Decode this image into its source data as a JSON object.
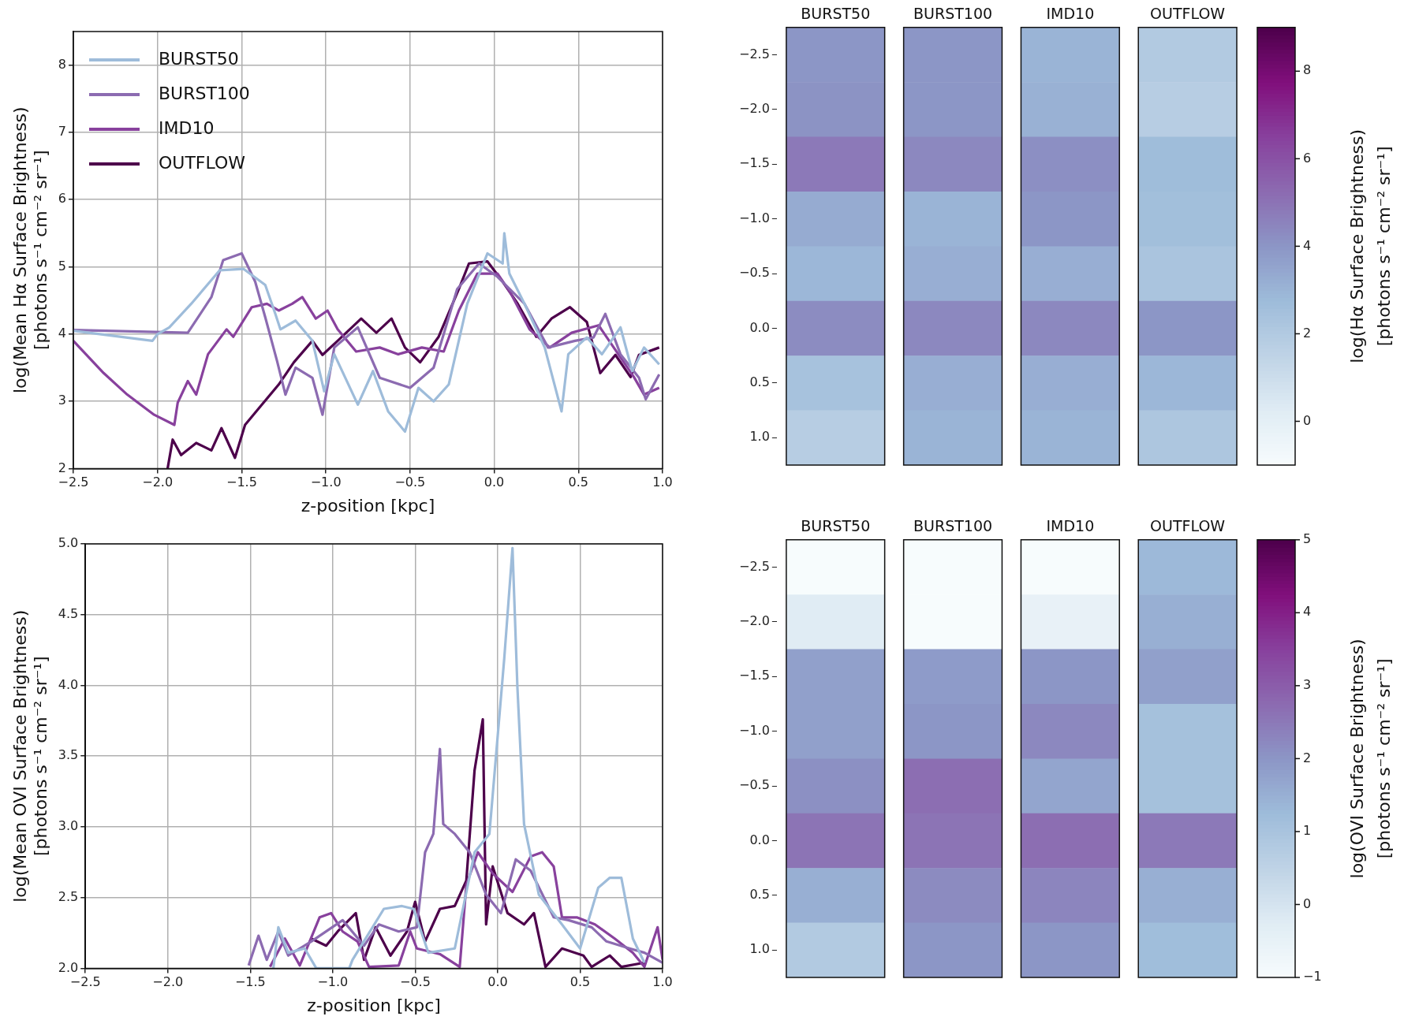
{
  "chart_data": [
    {
      "type": "line",
      "xlabel": "z-position [kpc]",
      "ylabel": "log(Mean Hα Surface Brightness)\n[photons s⁻¹ cm⁻² sr⁻¹]",
      "xlim": [
        -2.5,
        1.0
      ],
      "ylim": [
        2,
        8.5
      ],
      "xticks": [
        {
          "value": -2.5,
          "label": "−2.5"
        },
        {
          "value": -2.0,
          "label": "−2.0"
        },
        {
          "value": -1.5,
          "label": "−1.5"
        },
        {
          "value": -1.0,
          "label": "−1.0"
        },
        {
          "value": -0.5,
          "label": "−0.5"
        },
        {
          "value": 0,
          "label": "0.0"
        },
        {
          "value": 0.5,
          "label": "0.5"
        },
        {
          "value": 1.0,
          "label": "1.0"
        }
      ],
      "yticks": [
        2,
        3,
        4,
        5,
        6,
        7,
        8
      ],
      "grid": true,
      "legend": "top left",
      "series": [
        {
          "name": "BURST50",
          "color": "#9ebcda",
          "x": [
            -2.5,
            -2.03,
            -2.0,
            -1.93,
            -1.8,
            -1.63,
            -1.49,
            -1.36,
            -1.3,
            -1.27,
            -1.18,
            -1.08,
            -1.01,
            -0.95,
            -0.81,
            -0.72,
            -0.63,
            -0.53,
            -0.45,
            -0.36,
            -0.27,
            -0.16,
            -0.04,
            0.05,
            0.06,
            0.09,
            0.18,
            0.3,
            0.4,
            0.44,
            0.55,
            0.64,
            0.75,
            0.82,
            0.89,
            0.98
          ],
          "values": [
            4.05,
            3.9,
            4.0,
            4.1,
            4.45,
            4.95,
            4.97,
            4.73,
            4.3,
            4.07,
            4.2,
            3.9,
            3.15,
            3.7,
            2.95,
            3.45,
            2.85,
            2.55,
            3.2,
            3.0,
            3.25,
            4.45,
            5.2,
            5.05,
            5.5,
            4.9,
            4.45,
            3.8,
            2.85,
            3.7,
            3.95,
            3.7,
            4.1,
            3.45,
            3.8,
            3.55
          ]
        },
        {
          "name": "BURST100",
          "color": "#8c6bb1",
          "x": [
            -2.5,
            -1.82,
            -1.68,
            -1.61,
            -1.5,
            -1.42,
            -1.36,
            -1.29,
            -1.24,
            -1.18,
            -1.08,
            -1.02,
            -0.95,
            -0.81,
            -0.68,
            -0.5,
            -0.36,
            -0.22,
            -0.09,
            0.02,
            0.18,
            0.32,
            0.48,
            0.59,
            0.66,
            0.75,
            0.86,
            0.9,
            0.98
          ],
          "values": [
            4.06,
            4.02,
            4.55,
            5.1,
            5.2,
            4.78,
            4.25,
            3.6,
            3.1,
            3.5,
            3.35,
            2.8,
            3.8,
            4.1,
            3.35,
            3.2,
            3.5,
            4.67,
            5.05,
            4.85,
            4.45,
            3.8,
            3.9,
            3.95,
            4.3,
            3.7,
            3.35,
            3.03,
            3.4
          ]
        },
        {
          "name": "IMD10",
          "color": "#88419d",
          "x": [
            -2.5,
            -2.32,
            -2.18,
            -2.02,
            -1.9,
            -1.88,
            -1.82,
            -1.77,
            -1.7,
            -1.59,
            -1.55,
            -1.44,
            -1.35,
            -1.28,
            -1.2,
            -1.14,
            -1.06,
            -0.99,
            -0.93,
            -0.82,
            -0.68,
            -0.57,
            -0.43,
            -0.3,
            -0.21,
            -0.1,
            0.02,
            0.1,
            0.21,
            0.33,
            0.46,
            0.62,
            0.71,
            0.83,
            0.89,
            0.98
          ],
          "values": [
            3.9,
            3.42,
            3.1,
            2.8,
            2.65,
            2.98,
            3.3,
            3.1,
            3.7,
            4.07,
            3.96,
            4.4,
            4.45,
            4.35,
            4.45,
            4.55,
            4.23,
            4.35,
            4.07,
            3.74,
            3.8,
            3.7,
            3.8,
            3.74,
            4.35,
            4.9,
            4.9,
            4.6,
            4.07,
            3.8,
            4.02,
            4.13,
            3.8,
            3.36,
            3.1,
            3.2
          ]
        },
        {
          "name": "OUTFLOW",
          "color": "#4d004b",
          "x": [
            -1.94,
            -1.91,
            -1.86,
            -1.77,
            -1.68,
            -1.62,
            -1.54,
            -1.48,
            -1.37,
            -1.28,
            -1.19,
            -1.08,
            -1.02,
            -0.93,
            -0.79,
            -0.7,
            -0.61,
            -0.53,
            -0.44,
            -0.33,
            -0.21,
            -0.15,
            -0.04,
            0.05,
            0.14,
            0.25,
            0.34,
            0.45,
            0.55,
            0.63,
            0.72,
            0.81,
            0.86,
            0.98
          ],
          "values": [
            2.0,
            2.43,
            2.2,
            2.38,
            2.27,
            2.6,
            2.16,
            2.65,
            2.98,
            3.25,
            3.58,
            3.9,
            3.69,
            3.9,
            4.23,
            4.02,
            4.23,
            3.8,
            3.58,
            3.96,
            4.67,
            5.05,
            5.08,
            4.78,
            4.45,
            3.96,
            4.23,
            4.4,
            4.18,
            3.42,
            3.69,
            3.36,
            3.69,
            3.8
          ]
        }
      ]
    },
    {
      "type": "heatmap",
      "categories": [
        "BURST50",
        "BURST100",
        "IMD10",
        "OUTFLOW"
      ],
      "y_categories": [
        "−2.5",
        "−2.0",
        "−1.5",
        "−1.0",
        "−0.5",
        "0.0",
        "0.5",
        "1.0"
      ],
      "clim": [
        -1,
        9
      ],
      "cticks": [
        0,
        2,
        4,
        6,
        8
      ],
      "clabel": "log(Hα Surface Brightness)\n[photons s⁻¹ cm⁻² sr⁻¹]",
      "cells": [
        [
          4,
          4,
          3,
          2
        ],
        [
          4.1,
          4,
          3.1,
          1.8
        ],
        [
          4.85,
          4.4,
          4.2,
          2.7
        ],
        [
          3.3,
          3,
          4,
          2.6
        ],
        [
          2.9,
          3.2,
          3.2,
          2.3
        ],
        [
          4.3,
          4.4,
          4.4,
          4
        ],
        [
          2.4,
          3.2,
          3.2,
          2.9
        ],
        [
          1.8,
          3,
          3,
          2.2
        ]
      ]
    },
    {
      "type": "line",
      "xlabel": "z-position [kpc]",
      "ylabel": "log(Mean OVI Surface Brightness)\n[photons s⁻¹ cm⁻² sr⁻¹]",
      "xlim": [
        -2.5,
        1.0
      ],
      "ylim": [
        2.0,
        5.0
      ],
      "xticks": [
        {
          "value": -2.5,
          "label": "−2.5"
        },
        {
          "value": -2.0,
          "label": "−2.0"
        },
        {
          "value": -1.5,
          "label": "−1.5"
        },
        {
          "value": -1.0,
          "label": "−1.0"
        },
        {
          "value": -0.5,
          "label": "−0.5"
        },
        {
          "value": 0,
          "label": "0.0"
        },
        {
          "value": 0.5,
          "label": "0.5"
        },
        {
          "value": 1.0,
          "label": "1.0"
        }
      ],
      "yticks": [
        {
          "value": 2.0,
          "label": "2.0"
        },
        {
          "value": 2.5,
          "label": "2.5"
        },
        {
          "value": 3.0,
          "label": "3.0"
        },
        {
          "value": 3.5,
          "label": "3.5"
        },
        {
          "value": 4.0,
          "label": "4.0"
        },
        {
          "value": 4.5,
          "label": "4.5"
        },
        {
          "value": 5.0,
          "label": "5.0"
        }
      ],
      "grid": true,
      "series": [
        {
          "color": "#9ebcda",
          "x": [
            -1.36,
            -1.33,
            -1.27,
            -1.17,
            -1.1,
            -0.9,
            -0.88,
            -0.69,
            -0.58,
            -0.51,
            -0.42,
            -0.26,
            -0.14,
            -0.05,
            0.04,
            0.09,
            0.12,
            0.16,
            0.25,
            0.39,
            0.5,
            0.61,
            0.68,
            0.75,
            0.82,
            0.89
          ],
          "values": [
            2.0,
            2.29,
            2.11,
            2.14,
            2.0,
            2.0,
            2.06,
            2.42,
            2.44,
            2.42,
            2.11,
            2.14,
            2.82,
            2.95,
            4.19,
            4.97,
            3.98,
            3.02,
            2.52,
            2.31,
            2.14,
            2.57,
            2.64,
            2.64,
            2.21,
            2.04
          ]
        },
        {
          "color": "#8c6bb1",
          "x": [
            -1.51,
            -1.45,
            -1.4,
            -1.33,
            -1.27,
            -1.13,
            -0.94,
            -0.81,
            -0.72,
            -0.6,
            -0.49,
            -0.44,
            -0.39,
            -0.35,
            -0.33,
            -0.26,
            -0.17,
            -0.07,
            0.02,
            0.11,
            0.2,
            0.34,
            0.43,
            0.57,
            0.66,
            0.8,
            0.89,
            1.0
          ],
          "values": [
            2.02,
            2.23,
            2.06,
            2.26,
            2.09,
            2.19,
            2.34,
            2.16,
            2.31,
            2.26,
            2.29,
            2.82,
            2.95,
            3.55,
            3.02,
            2.95,
            2.82,
            2.52,
            2.39,
            2.77,
            2.69,
            2.36,
            2.34,
            2.29,
            2.19,
            2.14,
            2.11,
            2.04
          ]
        },
        {
          "color": "#88419d",
          "x": [
            -1.38,
            -1.29,
            -1.2,
            -1.08,
            -1.01,
            -0.94,
            -0.85,
            -0.78,
            -0.6,
            -0.53,
            -0.49,
            -0.35,
            -0.23,
            -0.19,
            -0.12,
            -0.03,
            0.09,
            0.2,
            0.27,
            0.34,
            0.39,
            0.48,
            0.59,
            0.71,
            0.82,
            0.89,
            0.97,
            1.0
          ],
          "values": [
            2.01,
            2.21,
            2.02,
            2.36,
            2.39,
            2.26,
            2.19,
            2.01,
            2.02,
            2.26,
            2.14,
            2.1,
            2.01,
            2.59,
            2.82,
            2.67,
            2.54,
            2.79,
            2.82,
            2.72,
            2.36,
            2.36,
            2.31,
            2.21,
            2.11,
            2.01,
            2.29,
            2.06
          ]
        },
        {
          "color": "#4d004b",
          "x": [
            -1.13,
            -1.04,
            -0.97,
            -0.86,
            -0.81,
            -0.74,
            -0.65,
            -0.55,
            -0.5,
            -0.44,
            -0.35,
            -0.26,
            -0.19,
            -0.14,
            -0.09,
            -0.07,
            -0.03,
            0.06,
            0.16,
            0.22,
            0.29,
            0.39,
            0.52,
            0.57,
            0.68,
            0.75,
            0.89
          ],
          "values": [
            2.21,
            2.16,
            2.26,
            2.39,
            2.06,
            2.29,
            2.09,
            2.26,
            2.47,
            2.19,
            2.42,
            2.44,
            2.62,
            3.4,
            3.76,
            2.31,
            2.72,
            2.39,
            2.31,
            2.39,
            2.01,
            2.14,
            2.09,
            2.01,
            2.09,
            2.01,
            2.04
          ]
        }
      ]
    },
    {
      "type": "heatmap",
      "categories": [
        "BURST50",
        "BURST100",
        "IMD10",
        "OUTFLOW"
      ],
      "y_categories": [
        "−2.5",
        "−2.0",
        "−1.5",
        "−1.0",
        "−0.5",
        "0.0",
        "0.5",
        "1.0"
      ],
      "clim": [
        -1,
        5
      ],
      "cticks": [
        {
          "value": -1,
          "label": "−1"
        },
        0,
        1,
        2,
        3,
        4,
        5
      ],
      "clabel": "log(OVI Surface Brightness)\n[photons s⁻¹ cm⁻² sr⁻¹]",
      "cells": [
        [
          -1,
          -1,
          -1,
          1.3
        ],
        [
          -0.25,
          -1,
          -0.5,
          1.5
        ],
        [
          1.8,
          1.9,
          2,
          1.8
        ],
        [
          1.8,
          2,
          2.25,
          1.1
        ],
        [
          2.1,
          2.7,
          1.7,
          1.1
        ],
        [
          2.6,
          2.6,
          2.7,
          2.5
        ],
        [
          1.5,
          2.2,
          2.3,
          1.5
        ],
        [
          0.8,
          2,
          2,
          1.2
        ]
      ]
    }
  ]
}
